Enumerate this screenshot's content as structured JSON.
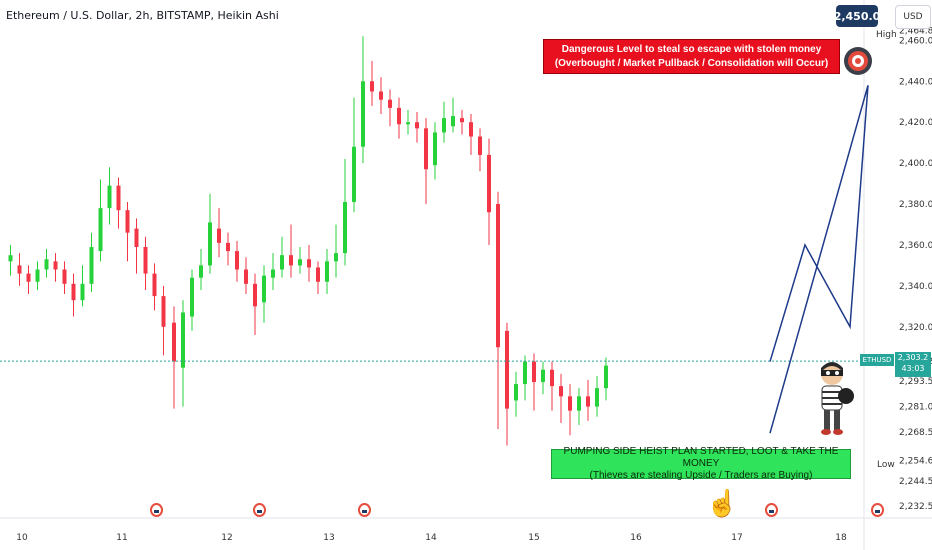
{
  "title": "Ethereum / U.S. Dollar, 2h, BITSTAMP, Heikin Ashi",
  "price_tag": "2,450.0",
  "currency": "USD",
  "high_label": "High",
  "low_label": "Low",
  "symbol_tag": "ETHUSD",
  "last_price": "2,303.2",
  "countdown": "43:03",
  "annotation_top": {
    "line1": "Dangerous Level to steal so escape with stolen money",
    "line2": "(Overbought / Market Pullback / Consolidation will Occur)"
  },
  "annotation_bottom": {
    "line1": "PUMPING SIDE HEIST PLAN STARTED, LOOT & TAKE THE MONEY",
    "line2": "(Thieves are stealing Upside / Traders are Buying)"
  },
  "colors": {
    "up": "#26d13a",
    "down": "#f23645",
    "projection": "#2962ff",
    "last_price_line": "#26a69a"
  },
  "chart_data": {
    "type": "candlestick",
    "y_ticks": [
      "2,464.8",
      "2,460.0",
      "2,440.0",
      "2,420.0",
      "2,400.0",
      "2,380.0",
      "2,360.0",
      "2,340.0",
      "2,320.0",
      "2,303.2",
      "2,293.5",
      "2,281.0",
      "2,268.5",
      "2,254.6",
      "2,244.5",
      "2,232.5"
    ],
    "x_ticks": [
      "10",
      "11",
      "12",
      "13",
      "14",
      "15",
      "16",
      "17",
      "18"
    ],
    "ylim": [
      2228,
      2468
    ],
    "candles": [
      [
        2352,
        2355,
        2345,
        2360
      ],
      [
        2350,
        2346,
        2340,
        2356
      ],
      [
        2346,
        2342,
        2336,
        2350
      ],
      [
        2342,
        2348,
        2338,
        2352
      ],
      [
        2348,
        2353,
        2344,
        2358
      ],
      [
        2352,
        2348,
        2342,
        2356
      ],
      [
        2348,
        2341,
        2336,
        2352
      ],
      [
        2341,
        2333,
        2325,
        2346
      ],
      [
        2333,
        2341,
        2330,
        2350
      ],
      [
        2341,
        2359,
        2337,
        2366
      ],
      [
        2357,
        2378,
        2352,
        2392
      ],
      [
        2378,
        2389,
        2370,
        2398
      ],
      [
        2389,
        2377,
        2368,
        2393
      ],
      [
        2377,
        2366,
        2352,
        2381
      ],
      [
        2368,
        2359,
        2346,
        2373
      ],
      [
        2359,
        2346,
        2338,
        2364
      ],
      [
        2346,
        2335,
        2328,
        2351
      ],
      [
        2335,
        2320,
        2306,
        2340
      ],
      [
        2322,
        2303,
        2280,
        2330
      ],
      [
        2300,
        2327,
        2281,
        2333
      ],
      [
        2325,
        2344,
        2318,
        2348
      ],
      [
        2344,
        2350,
        2338,
        2358
      ],
      [
        2350,
        2371,
        2346,
        2385
      ],
      [
        2368,
        2361,
        2354,
        2378
      ],
      [
        2361,
        2357,
        2350,
        2366
      ],
      [
        2357,
        2348,
        2342,
        2362
      ],
      [
        2348,
        2341,
        2336,
        2354
      ],
      [
        2341,
        2330,
        2316,
        2346
      ],
      [
        2332,
        2345,
        2322,
        2350
      ],
      [
        2344,
        2348,
        2338,
        2356
      ],
      [
        2348,
        2355,
        2344,
        2364
      ],
      [
        2355,
        2350,
        2344,
        2370
      ],
      [
        2350,
        2353,
        2346,
        2359
      ],
      [
        2353,
        2349,
        2342,
        2360
      ],
      [
        2349,
        2342,
        2336,
        2352
      ],
      [
        2342,
        2352,
        2336,
        2358
      ],
      [
        2352,
        2356,
        2344,
        2370
      ],
      [
        2356,
        2381,
        2350,
        2402
      ],
      [
        2381,
        2408,
        2376,
        2432
      ],
      [
        2408,
        2440,
        2400,
        2462
      ],
      [
        2440,
        2435,
        2428,
        2450
      ],
      [
        2435,
        2431,
        2424,
        2442
      ],
      [
        2431,
        2427,
        2418,
        2436
      ],
      [
        2427,
        2419,
        2412,
        2432
      ],
      [
        2419,
        2420,
        2414,
        2426
      ],
      [
        2420,
        2417,
        2410,
        2425
      ],
      [
        2417,
        2397,
        2380,
        2422
      ],
      [
        2399,
        2415,
        2392,
        2420
      ],
      [
        2415,
        2422,
        2410,
        2430
      ],
      [
        2418,
        2423,
        2415,
        2432
      ],
      [
        2422,
        2420,
        2414,
        2426
      ],
      [
        2420,
        2413,
        2404,
        2424
      ],
      [
        2413,
        2404,
        2396,
        2417
      ],
      [
        2404,
        2376,
        2360,
        2412
      ],
      [
        2380,
        2310,
        2270,
        2386
      ],
      [
        2318,
        2280,
        2262,
        2322
      ],
      [
        2284,
        2292,
        2276,
        2298
      ],
      [
        2292,
        2303,
        2284,
        2306
      ],
      [
        2303,
        2293,
        2279,
        2307
      ],
      [
        2293,
        2299,
        2287,
        2303
      ],
      [
        2299,
        2291,
        2279,
        2303
      ],
      [
        2291,
        2286,
        2273,
        2297
      ],
      [
        2286,
        2279,
        2267,
        2292
      ],
      [
        2279,
        2286,
        2272,
        2290
      ],
      [
        2286,
        2281,
        2274,
        2294
      ],
      [
        2281,
        2290,
        2276,
        2296
      ],
      [
        2290,
        2301,
        2284,
        2305
      ]
    ],
    "candle_x": [
      7,
      13,
      19,
      25,
      31,
      37,
      43,
      49,
      55,
      61,
      67,
      73,
      79,
      85,
      91,
      97,
      103,
      109,
      116,
      122,
      128,
      134,
      140,
      146,
      152,
      158,
      164,
      170,
      176,
      182,
      188,
      194,
      200,
      206,
      212,
      218,
      224,
      230,
      236,
      242,
      248,
      254,
      260,
      266,
      272,
      278,
      284,
      290,
      296,
      302,
      308,
      314,
      320,
      326,
      332,
      338,
      344,
      350,
      356,
      362,
      368,
      374,
      380,
      386,
      392,
      398,
      404
    ],
    "projection": [
      [
        2303,
        0
      ],
      [
        2360,
        1
      ],
      [
        2320,
        2
      ],
      [
        2438,
        3
      ],
      [
        2268,
        4
      ]
    ]
  }
}
